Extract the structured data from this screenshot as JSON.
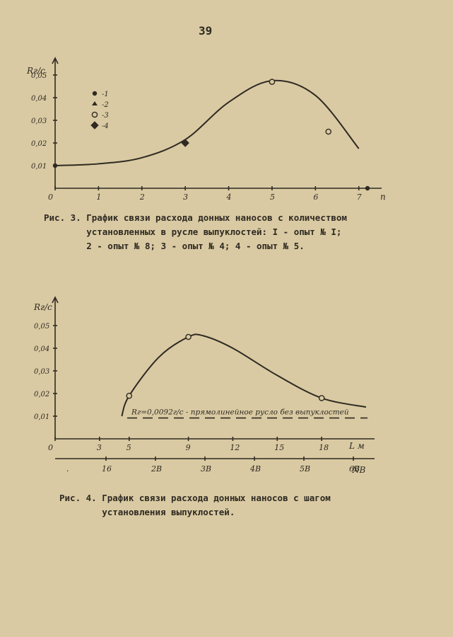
{
  "page_number": "39",
  "captions": {
    "fig3_lines": [
      "Рис. 3. График связи расхода донных наносов с количеством",
      "        установленных в русле выпуклостей: I - опыт № I;",
      "        2 - опыт № 8; 3 - опыт № 4; 4 - опыт № 5."
    ],
    "fig4_lines": [
      "Рис. 4. График связи расхода донных наносов с шагом",
      "        установления выпуклостей."
    ]
  },
  "chart_data": [
    {
      "type": "line",
      "title": "",
      "ylabel": "Rг/с",
      "xlabel": "n",
      "xlim": [
        0,
        7.2
      ],
      "ylim": [
        0,
        0.055
      ],
      "x_ticks": [
        {
          "v": 0,
          "label": "0"
        },
        {
          "v": 1,
          "label": "1"
        },
        {
          "v": 2,
          "label": "2"
        },
        {
          "v": 3,
          "label": "3"
        },
        {
          "v": 4,
          "label": "4"
        },
        {
          "v": 5,
          "label": "5"
        },
        {
          "v": 6,
          "label": "6"
        },
        {
          "v": 7,
          "label": "7"
        }
      ],
      "y_ticks": [
        {
          "v": 0.01,
          "label": "0,01"
        },
        {
          "v": 0.02,
          "label": "0,02"
        },
        {
          "v": 0.03,
          "label": "0,03"
        },
        {
          "v": 0.04,
          "label": "0,04"
        },
        {
          "v": 0.05,
          "label": "0,05"
        }
      ],
      "curve": [
        [
          0,
          0.01
        ],
        [
          1,
          0.0108
        ],
        [
          2,
          0.0135
        ],
        [
          3,
          0.0215
        ],
        [
          4,
          0.038
        ],
        [
          5,
          0.0475
        ],
        [
          6,
          0.041
        ],
        [
          7,
          0.0175
        ]
      ],
      "points": [
        {
          "x": 0,
          "y": 0.01,
          "marker": "filled"
        },
        {
          "x": 3,
          "y": 0.02,
          "marker": "diamond"
        },
        {
          "x": 5,
          "y": 0.047,
          "marker": "open"
        },
        {
          "x": 6.3,
          "y": 0.025,
          "marker": "open"
        },
        {
          "x": 7.2,
          "y": 0.0,
          "marker": "filled"
        }
      ],
      "legend": {
        "placement": "top-left",
        "items": [
          {
            "marker": "filled",
            "label": "-1"
          },
          {
            "marker": "half",
            "label": "-2"
          },
          {
            "marker": "open",
            "label": "-3"
          },
          {
            "marker": "diamond",
            "label": "-4"
          }
        ]
      }
    },
    {
      "type": "line",
      "title": "",
      "ylabel": "Rг/с",
      "xlabel": "L м",
      "xlabel2": "NB",
      "xlim": [
        0,
        21
      ],
      "ylim": [
        0,
        0.06
      ],
      "x_ticks": [
        {
          "v": 0,
          "label": "0"
        },
        {
          "v": 3,
          "label": "3"
        },
        {
          "v": 5,
          "label": "5"
        },
        {
          "v": 9,
          "label": "9"
        },
        {
          "v": 12,
          "label": "12"
        },
        {
          "v": 15,
          "label": "15"
        },
        {
          "v": 18,
          "label": "18"
        }
      ],
      "x2_ticks": [
        {
          "v": 1.5,
          "label": "."
        },
        {
          "v": 4,
          "label": "16"
        },
        {
          "v": 7.5,
          "label": "2B"
        },
        {
          "v": 11,
          "label": "3B"
        },
        {
          "v": 14.5,
          "label": "4B"
        },
        {
          "v": 18,
          "label": "5B"
        },
        {
          "v": 21.5,
          "label": "6B"
        }
      ],
      "y_ticks": [
        {
          "v": 0.01,
          "label": "0,01"
        },
        {
          "v": 0.02,
          "label": "0,02"
        },
        {
          "v": 0.03,
          "label": "0,03"
        },
        {
          "v": 0.04,
          "label": "0,04"
        },
        {
          "v": 0.05,
          "label": "0,05"
        }
      ],
      "curve": [
        [
          4.5,
          0.01
        ],
        [
          5,
          0.019
        ],
        [
          7,
          0.036
        ],
        [
          9,
          0.045
        ],
        [
          10,
          0.0455
        ],
        [
          12,
          0.04
        ],
        [
          15,
          0.028
        ],
        [
          18,
          0.018
        ],
        [
          21,
          0.014
        ]
      ],
      "points": [
        {
          "x": 5,
          "y": 0.019,
          "marker": "open"
        },
        {
          "x": 9,
          "y": 0.045,
          "marker": "open"
        },
        {
          "x": 18,
          "y": 0.018,
          "marker": "open"
        }
      ],
      "reference_line": {
        "y": 0.0092,
        "label": "Rг=0,0092г/с - прямолинейное русло без выпуклостей"
      }
    }
  ]
}
